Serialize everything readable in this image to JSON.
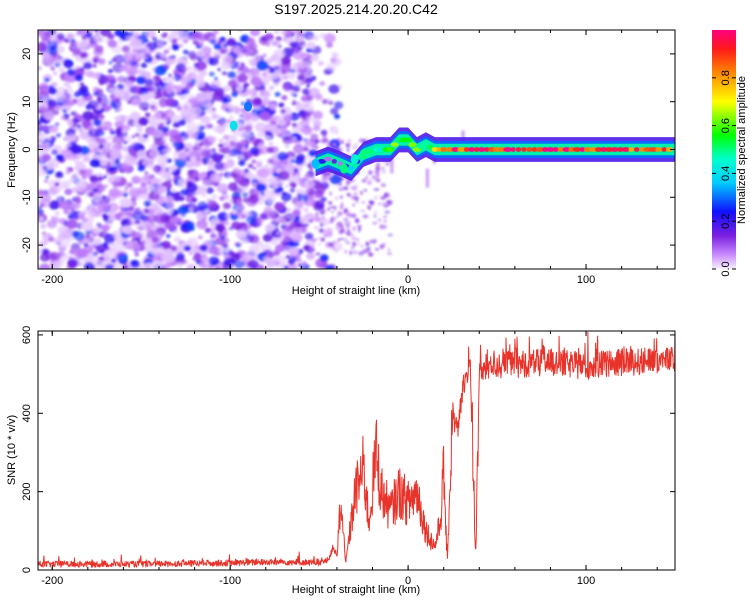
{
  "title": "S197.2025.214.20.20.C42",
  "chart_data": [
    {
      "type": "heatmap",
      "xlabel": "Height of straight line (km)",
      "ylabel": "Frequency (Hz)",
      "xlim": [
        -208,
        150
      ],
      "ylim": [
        -25,
        25
      ],
      "xticks": [
        -200,
        -100,
        0,
        100
      ],
      "yticks": [
        -20,
        -10,
        0,
        10,
        20
      ],
      "grid": false,
      "colorbar": {
        "label": "Normalized spectral amplitude",
        "ticks": [
          0.0,
          0.2,
          0.4,
          0.6,
          0.8
        ],
        "range": [
          0,
          1
        ]
      },
      "ridge": {
        "description_free": true,
        "x": [
          -52,
          -45,
          -38,
          -32,
          -25,
          -18,
          -10,
          -5,
          0,
          5,
          10,
          15,
          20,
          30,
          50,
          80,
          110,
          150
        ],
        "y": [
          -3,
          -2,
          -3,
          -4,
          -1,
          0,
          0,
          2,
          2,
          0,
          1,
          0,
          0,
          0,
          0,
          0,
          0,
          0
        ],
        "amplitude": [
          0.3,
          0.15,
          0.2,
          0.25,
          0.35,
          0.5,
          0.55,
          0.5,
          0.6,
          0.55,
          0.6,
          0.7,
          0.85,
          0.9,
          0.95,
          0.95,
          0.9,
          0.85
        ]
      }
    },
    {
      "type": "line",
      "xlabel": "Height of straight line (km)",
      "ylabel": "SNR (10 * v/v)",
      "xlim": [
        -208,
        150
      ],
      "ylim": [
        0,
        610
      ],
      "xticks": [
        -200,
        -100,
        0,
        100
      ],
      "yticks": [
        0,
        200,
        400,
        600
      ],
      "grid": false,
      "series": [
        {
          "color": "#e8332a",
          "x": [
            -208,
            -150,
            -100,
            -80,
            -60,
            -50,
            -45,
            -42,
            -40,
            -38,
            -35,
            -32,
            -30,
            -25,
            -22,
            -18,
            -15,
            -10,
            -5,
            0,
            5,
            10,
            15,
            18,
            20,
            22,
            25,
            28,
            30,
            33,
            35,
            38,
            40,
            45,
            60,
            80,
            100,
            120,
            150
          ],
          "y": [
            15,
            15,
            18,
            20,
            20,
            18,
            25,
            60,
            30,
            170,
            20,
            120,
            190,
            260,
            120,
            300,
            200,
            150,
            200,
            170,
            200,
            100,
            60,
            120,
            250,
            20,
            400,
            350,
            440,
            500,
            520,
            40,
            500,
            520,
            525,
            530,
            520,
            530,
            535
          ]
        }
      ]
    }
  ]
}
